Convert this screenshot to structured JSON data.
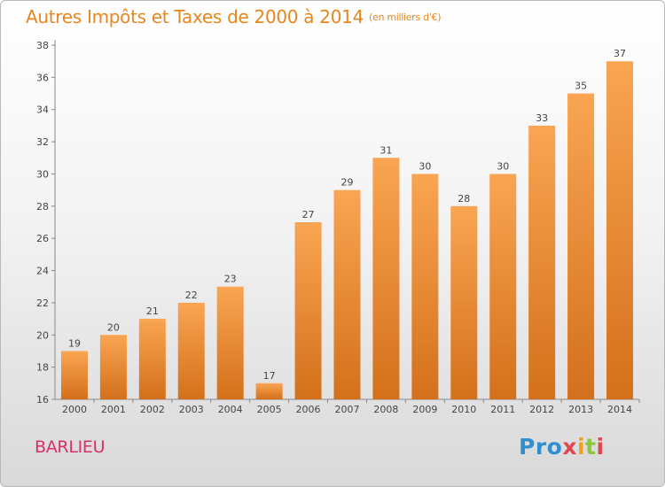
{
  "header": {
    "title": "Autres Impôts et Taxes de 2000 à 2014",
    "unit": "(en milliers d'€)"
  },
  "footer": {
    "commune": "BARLIEU",
    "logo": {
      "p1": "Pro",
      "p2": "x",
      "p3": "i",
      "p4": "t",
      "p5": "i"
    }
  },
  "colors": {
    "bar_top": "#f9a552",
    "bar_bottom": "#d4701b",
    "title": "#e6861e",
    "commune": "#d8306a"
  },
  "chart_data": {
    "type": "bar",
    "title": "Autres Impôts et Taxes de 2000 à 2014",
    "subtitle": "(en milliers d'€)",
    "xlabel": "",
    "ylabel": "",
    "categories": [
      "2000",
      "2001",
      "2002",
      "2003",
      "2004",
      "2005",
      "2006",
      "2007",
      "2008",
      "2009",
      "2010",
      "2011",
      "2012",
      "2013",
      "2014"
    ],
    "values": [
      19,
      20,
      21,
      22,
      23,
      17,
      27,
      29,
      31,
      30,
      28,
      30,
      33,
      35,
      37
    ],
    "ylim": [
      16,
      38
    ],
    "yticks": [
      16,
      18,
      20,
      22,
      24,
      26,
      28,
      30,
      32,
      34,
      36,
      38
    ],
    "grid": false,
    "legend": "none"
  }
}
